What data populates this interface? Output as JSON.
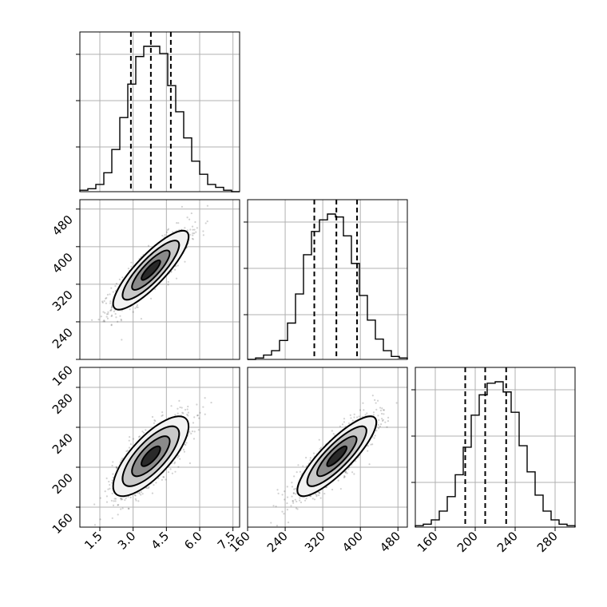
{
  "chart_data": {
    "type": "corner",
    "title": "",
    "parameters": [
      {
        "index": 0,
        "label": "",
        "range": [
          0.6,
          7.8
        ],
        "ticks": [
          1.5,
          3.0,
          4.5,
          6.0,
          7.5
        ],
        "tick_labels": [
          "1.5",
          "3.0",
          "4.5",
          "6.0",
          "7.5"
        ],
        "mean": 3.8,
        "sd": 0.85,
        "quantiles": [
          2.9,
          3.8,
          4.7
        ]
      },
      {
        "index": 1,
        "label": "",
        "range": [
          160,
          500
        ],
        "ticks": [
          160,
          240,
          320,
          400,
          480
        ],
        "tick_labels": [
          "160",
          "240",
          "320",
          "400",
          "480"
        ],
        "mean": 350,
        "sd": 42,
        "quantiles": [
          302,
          349,
          393
        ]
      },
      {
        "index": 2,
        "label": "",
        "range": [
          140,
          300
        ],
        "ticks": [
          160,
          200,
          240,
          280
        ],
        "tick_labels": [
          "160",
          "200",
          "240",
          "280"
        ],
        "mean": 211,
        "sd": 20,
        "quantiles": [
          190,
          210,
          231
        ]
      }
    ],
    "correlations": {
      "0-1": 0.85,
      "0-2": 0.75,
      "1-2": 0.85
    },
    "hist_bins": 20,
    "hist_counts": [
      [
        0.01,
        0.02,
        0.05,
        0.13,
        0.29,
        0.51,
        0.74,
        0.93,
        1.0,
        1.0,
        0.95,
        0.73,
        0.55,
        0.37,
        0.21,
        0.12,
        0.05,
        0.03,
        0.01,
        0.0
      ],
      [
        0.0,
        0.01,
        0.03,
        0.06,
        0.13,
        0.25,
        0.45,
        0.72,
        0.88,
        0.96,
        1.0,
        0.98,
        0.85,
        0.66,
        0.44,
        0.27,
        0.14,
        0.06,
        0.02,
        0.01
      ],
      [
        0.01,
        0.02,
        0.05,
        0.11,
        0.21,
        0.36,
        0.55,
        0.77,
        0.91,
        0.99,
        1.0,
        0.93,
        0.79,
        0.56,
        0.38,
        0.22,
        0.11,
        0.05,
        0.02,
        0.01
      ]
    ],
    "contour_levels": [
      "0.5-sigma",
      "1-sigma",
      "1.5-sigma",
      "2-sigma"
    ],
    "grid": true,
    "colors": {
      "density": "#000000",
      "grid": "#b0b0b0",
      "quantile_lines": "#000000"
    }
  }
}
